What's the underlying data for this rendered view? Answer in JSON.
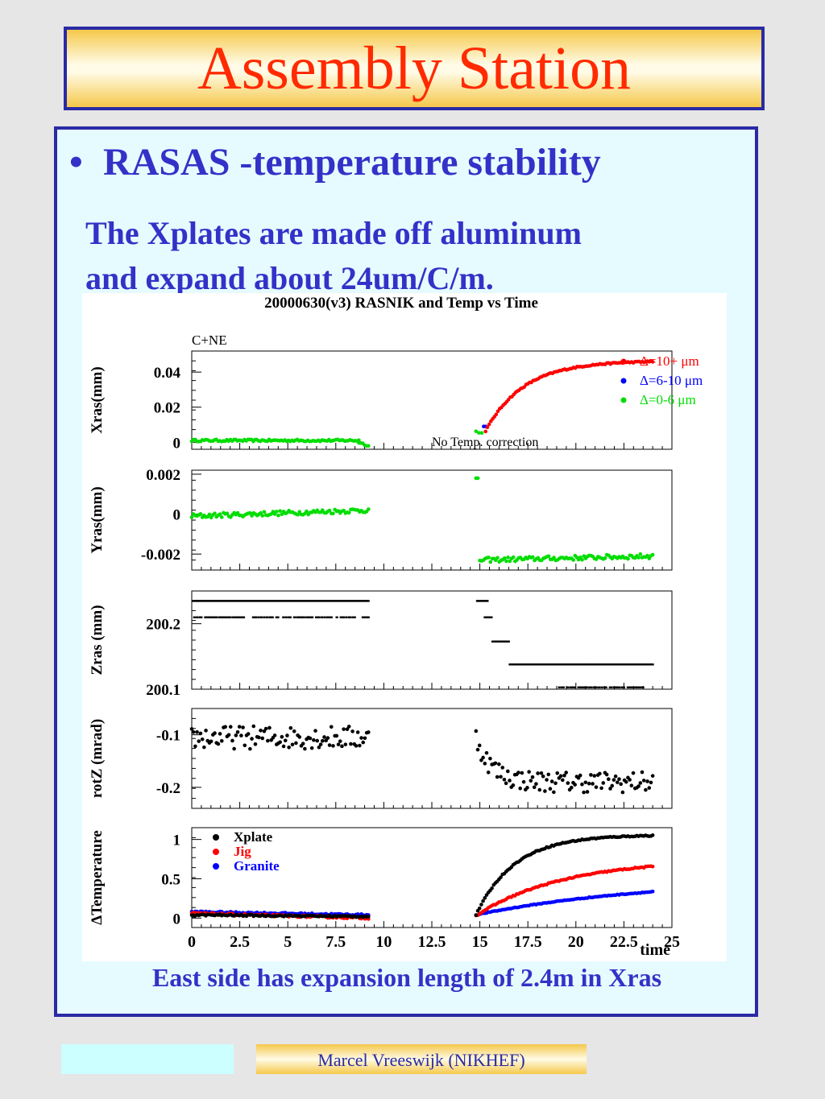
{
  "slide": {
    "title": "Assembly Station",
    "bullet": "RASAS -temperature stability",
    "paragraph_line1": "The Xplates are made off aluminum",
    "paragraph_line2": "and expand about 24um/C/m.",
    "bottom_note": "East side has expansion length of 2.4m in Xras",
    "footer": "Marcel Vreeswijk (NIKHEF)",
    "colors": {
      "title": "#ff2a00",
      "text": "#3232c8",
      "border": "#2a2aa5"
    }
  },
  "chart_data": {
    "type": "scatter",
    "title": "20000630(v3) RASNIK and Temp vs Time",
    "xlabel": "time",
    "xlim": [
      0,
      25
    ],
    "xticks": [
      "0",
      "2.5",
      "5",
      "7.5",
      "10",
      "12.5",
      "15",
      "17.5",
      "20",
      "22.5",
      "25"
    ],
    "gap": [
      9.2,
      14.8
    ],
    "panels": [
      {
        "ylabel": "Xras(mm)",
        "ylim": [
          -0.004,
          0.052
        ],
        "yticks": [
          {
            "v": 0,
            "label": "0"
          },
          {
            "v": 0.02,
            "label": "0.02"
          },
          {
            "v": 0.04,
            "label": "0.04"
          }
        ],
        "annotations": [
          "C+NE",
          "No Temp. correction"
        ],
        "legend": [
          {
            "name": "Δ=10+ μm",
            "color": "#ff0000"
          },
          {
            "name": "Δ=6-10 μm",
            "color": "#0000ff"
          },
          {
            "name": "Δ=0-6 μm",
            "color": "#00dd00"
          }
        ],
        "series": [
          {
            "name": "Δ=0-6 μm",
            "color": "#00dd00",
            "segments": [
              {
                "kind": "noisy",
                "t0": 0,
                "t1": 8.7,
                "v0": 0.001,
                "v1": 0.001,
                "noise": 0.0006
              },
              {
                "kind": "noisy",
                "t0": 8.7,
                "t1": 9.2,
                "v0": 0.0,
                "v1": -0.002,
                "noise": 0.0005
              },
              {
                "kind": "exp",
                "t0": 14.8,
                "t1": 15.1,
                "a": 0.002,
                "b": 0.004,
                "tau": 1,
                "noise": 0.001
              }
            ]
          },
          {
            "name": "Δ=6-10 μm",
            "color": "#0000ff",
            "segments": [
              {
                "kind": "noisy",
                "t0": 15.2,
                "t1": 15.3,
                "v0": 0.009,
                "v1": 0.009,
                "noise": 0.0
              }
            ]
          },
          {
            "name": "Δ=10+ μm",
            "color": "#ff0000",
            "segments": [
              {
                "kind": "exp",
                "t0": 15.3,
                "t1": 24,
                "a": 0.0465,
                "b": -0.04,
                "tau": 2.0,
                "noise": 0.0004
              }
            ]
          }
        ]
      },
      {
        "ylabel": "Yras(mm)",
        "ylim": [
          -0.0028,
          0.0022
        ],
        "yticks": [
          {
            "v": -0.002,
            "label": "-0.002"
          },
          {
            "v": 0,
            "label": "0"
          },
          {
            "v": 0.002,
            "label": "0.002"
          }
        ],
        "series": [
          {
            "name": "Yras",
            "color": "#00dd00",
            "segments": [
              {
                "kind": "noisy",
                "t0": 0,
                "t1": 9.2,
                "v0": -0.0001,
                "v1": 0.0002,
                "noise": 0.00012
              },
              {
                "kind": "noisy",
                "t0": 14.8,
                "t1": 14.9,
                "v0": 0.0018,
                "v1": 0.0018,
                "noise": 0.0
              },
              {
                "kind": "noisy",
                "t0": 15.0,
                "t1": 24,
                "v0": -0.0023,
                "v1": -0.0021,
                "noise": 0.00012
              }
            ]
          }
        ]
      },
      {
        "ylabel": "Zras (mm)",
        "ylim": [
          200.1,
          200.25
        ],
        "yticks": [
          {
            "v": 200.1,
            "label": "200.1"
          },
          {
            "v": 200.2,
            "label": "200.2"
          }
        ],
        "series": [
          {
            "name": "Zras",
            "color": "#000000",
            "segments": [
              {
                "kind": "levels",
                "t0": 0,
                "t1": 9.2,
                "levels": [
                  200.235,
                  200.21
                ]
              },
              {
                "kind": "levels",
                "t0": 14.8,
                "t1": 15.4,
                "levels": [
                  200.235
                ]
              },
              {
                "kind": "levels",
                "t0": 15.2,
                "t1": 15.6,
                "levels": [
                  200.21
                ]
              },
              {
                "kind": "levels",
                "t0": 15.6,
                "t1": 16.5,
                "levels": [
                  200.173
                ]
              },
              {
                "kind": "levels",
                "t0": 16.5,
                "t1": 24,
                "levels": [
                  200.138
                ]
              },
              {
                "kind": "levels",
                "t0": 19,
                "t1": 23.5,
                "levels": [
                  200.103
                ]
              }
            ]
          }
        ]
      },
      {
        "ylabel": "rotZ (mrad)",
        "ylim": [
          -0.24,
          -0.05
        ],
        "yticks": [
          {
            "v": -0.2,
            "label": "-0.2"
          },
          {
            "v": -0.1,
            "label": "-0.1"
          }
        ],
        "series": [
          {
            "name": "rotZ",
            "color": "#000000",
            "segments": [
              {
                "kind": "noisy",
                "t0": 0,
                "t1": 9.2,
                "v0": -0.105,
                "v1": -0.105,
                "noise": 0.022
              },
              {
                "kind": "exp",
                "t0": 14.8,
                "t1": 24,
                "a": -0.19,
                "b": 0.085,
                "tau": 0.8,
                "noise": 0.02
              }
            ]
          }
        ]
      },
      {
        "ylabel": "ΔTemperature",
        "ylim": [
          -0.12,
          1.15
        ],
        "yticks": [
          {
            "v": 0,
            "label": "0"
          },
          {
            "v": 0.5,
            "label": "0.5"
          },
          {
            "v": 1,
            "label": "1"
          }
        ],
        "legend": [
          {
            "name": "Xplate",
            "color": "#000000"
          },
          {
            "name": "Jig",
            "color": "#ff0000"
          },
          {
            "name": "Granite",
            "color": "#0000ff"
          }
        ],
        "series": [
          {
            "name": "Granite",
            "color": "#0000ff",
            "segments": [
              {
                "kind": "noisy",
                "t0": 0,
                "t1": 9.2,
                "v0": 0.08,
                "v1": 0.04,
                "noise": 0.01
              },
              {
                "kind": "exp",
                "t0": 14.8,
                "t1": 24,
                "a": 0.5,
                "b": -0.46,
                "tau": 9.0,
                "noise": 0.005
              }
            ]
          },
          {
            "name": "Jig",
            "color": "#ff0000",
            "segments": [
              {
                "kind": "noisy",
                "t0": 0,
                "t1": 9.2,
                "v0": 0.06,
                "v1": 0.0,
                "noise": 0.012
              },
              {
                "kind": "exp",
                "t0": 14.8,
                "t1": 24,
                "a": 0.75,
                "b": -0.72,
                "tau": 4.5,
                "noise": 0.008
              }
            ]
          },
          {
            "name": "Xplate",
            "color": "#000000",
            "segments": [
              {
                "kind": "noisy",
                "t0": 0,
                "t1": 9.2,
                "v0": 0.04,
                "v1": 0.02,
                "noise": 0.01
              },
              {
                "kind": "exp",
                "t0": 14.8,
                "t1": 24,
                "a": 1.06,
                "b": -1.02,
                "tau": 2.0,
                "noise": 0.008
              }
            ]
          }
        ]
      }
    ]
  }
}
